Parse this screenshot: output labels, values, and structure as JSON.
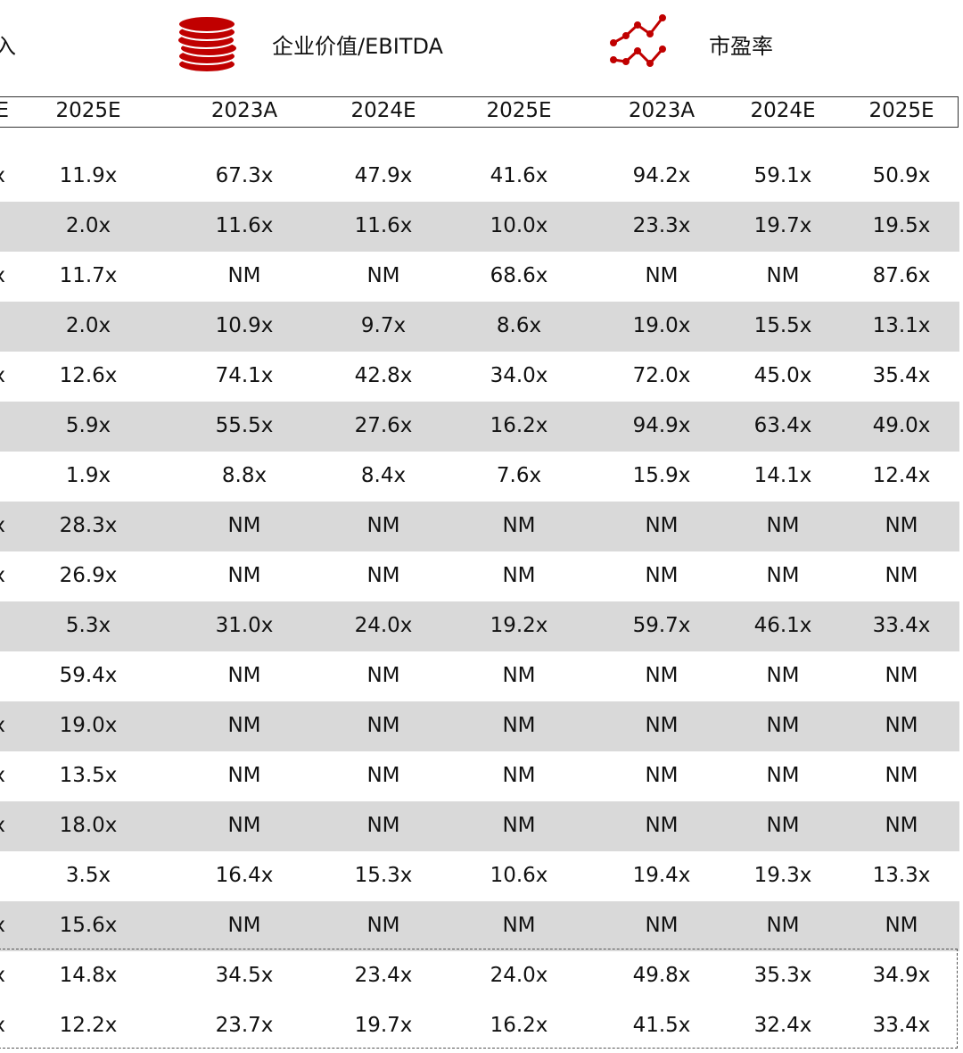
{
  "legend": {
    "clipped_label": "入",
    "ev_ebitda": "企业价值/EBITDA",
    "pe": "市盈率",
    "ev_icon": "coins-stack-icon",
    "pe_icon": "line-chart-icon",
    "accent": "#c00000"
  },
  "headers": [
    "E",
    "2025E",
    "2023A",
    "2024E",
    "2025E",
    "2023A",
    "2024E",
    "2025E"
  ],
  "rows": [
    [
      "x",
      "11.9x",
      "67.3x",
      "47.9x",
      "41.6x",
      "94.2x",
      "59.1x",
      "50.9x"
    ],
    [
      "",
      "2.0x",
      "11.6x",
      "11.6x",
      "10.0x",
      "23.3x",
      "19.7x",
      "19.5x"
    ],
    [
      "x",
      "11.7x",
      "NM",
      "NM",
      "68.6x",
      "NM",
      "NM",
      "87.6x"
    ],
    [
      "",
      "2.0x",
      "10.9x",
      "9.7x",
      "8.6x",
      "19.0x",
      "15.5x",
      "13.1x"
    ],
    [
      "x",
      "12.6x",
      "74.1x",
      "42.8x",
      "34.0x",
      "72.0x",
      "45.0x",
      "35.4x"
    ],
    [
      "",
      "5.9x",
      "55.5x",
      "27.6x",
      "16.2x",
      "94.9x",
      "63.4x",
      "49.0x"
    ],
    [
      "",
      "1.9x",
      "8.8x",
      "8.4x",
      "7.6x",
      "15.9x",
      "14.1x",
      "12.4x"
    ],
    [
      "x",
      "28.3x",
      "NM",
      "NM",
      "NM",
      "NM",
      "NM",
      "NM"
    ],
    [
      "x",
      "26.9x",
      "NM",
      "NM",
      "NM",
      "NM",
      "NM",
      "NM"
    ],
    [
      "",
      "5.3x",
      "31.0x",
      "24.0x",
      "19.2x",
      "59.7x",
      "46.1x",
      "33.4x"
    ],
    [
      "",
      "59.4x",
      "NM",
      "NM",
      "NM",
      "NM",
      "NM",
      "NM"
    ],
    [
      "x",
      "19.0x",
      "NM",
      "NM",
      "NM",
      "NM",
      "NM",
      "NM"
    ],
    [
      "x",
      "13.5x",
      "NM",
      "NM",
      "NM",
      "NM",
      "NM",
      "NM"
    ],
    [
      "x",
      "18.0x",
      "NM",
      "NM",
      "NM",
      "NM",
      "NM",
      "NM"
    ],
    [
      "",
      "3.5x",
      "16.4x",
      "15.3x",
      "10.6x",
      "19.4x",
      "19.3x",
      "13.3x"
    ],
    [
      "x",
      "15.6x",
      "NM",
      "NM",
      "NM",
      "NM",
      "NM",
      "NM"
    ],
    [
      "x",
      "14.8x",
      "34.5x",
      "23.4x",
      "24.0x",
      "49.8x",
      "35.3x",
      "34.9x"
    ],
    [
      "x",
      "12.2x",
      "23.7x",
      "19.7x",
      "16.2x",
      "41.5x",
      "32.4x",
      "33.4x"
    ]
  ]
}
